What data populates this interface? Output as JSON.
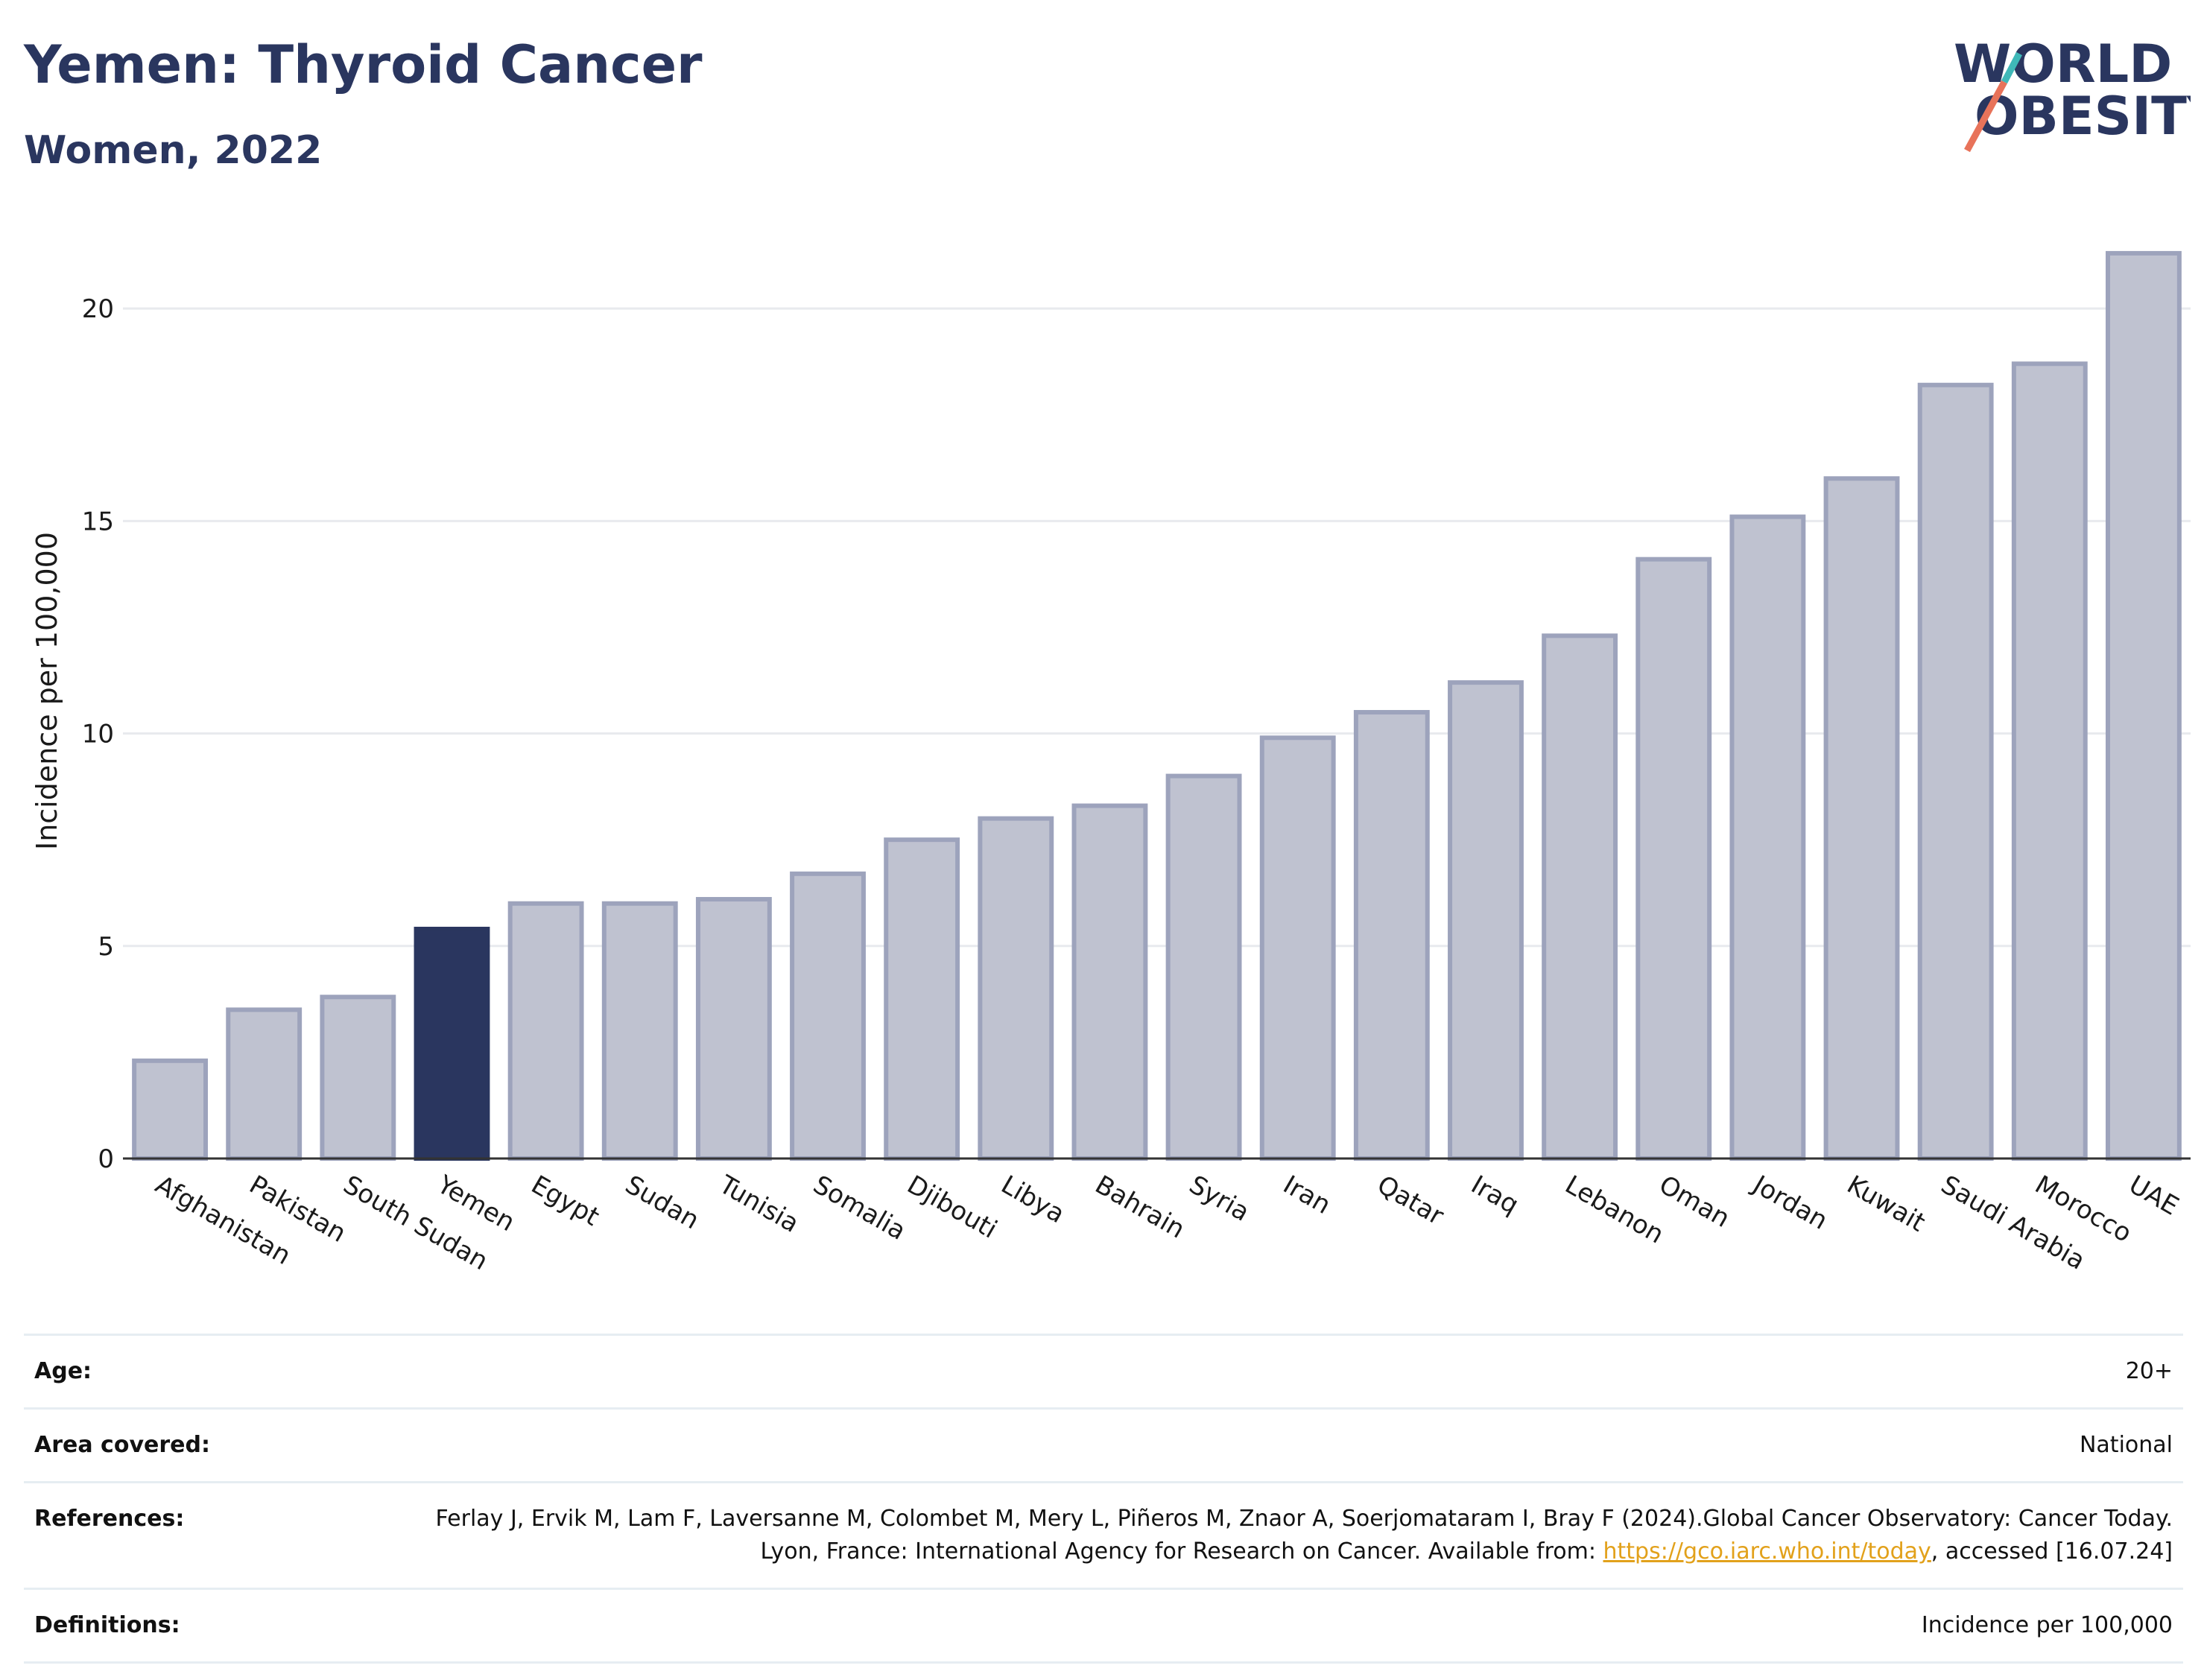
{
  "header": {
    "title": "Yemen: Thyroid Cancer",
    "subtitle": "Women, 2022"
  },
  "logo": {
    "line1": "WORLD",
    "line2": "OBESITY",
    "text_color": "#2a365f",
    "slash_colors": [
      "#e8735a",
      "#3fb8b8"
    ]
  },
  "chart_data": {
    "type": "bar",
    "title": "Yemen: Thyroid Cancer",
    "subtitle": "Women, 2022",
    "xlabel": "",
    "ylabel": "Incidence per 100,000",
    "categories": [
      "Afghanistan",
      "Pakistan",
      "South Sudan",
      "Yemen",
      "Egypt",
      "Sudan",
      "Tunisia",
      "Somalia",
      "Djibouti",
      "Libya",
      "Bahrain",
      "Syria",
      "Iran",
      "Qatar",
      "Iraq",
      "Lebanon",
      "Oman",
      "Jordan",
      "Kuwait",
      "Saudi Arabia",
      "Morocco",
      "UAE"
    ],
    "values": [
      2.3,
      3.5,
      3.8,
      5.4,
      6.0,
      6.0,
      6.1,
      6.7,
      7.5,
      8.0,
      8.3,
      9.0,
      9.9,
      10.5,
      11.2,
      12.3,
      14.1,
      15.1,
      16.0,
      18.2,
      18.7,
      21.3
    ],
    "highlight": "Yemen",
    "ylim": [
      0,
      22
    ],
    "yticks": [
      0,
      5,
      10,
      15,
      20
    ],
    "grid": true,
    "legend": "none",
    "colors": {
      "bar": "#bfc2d0",
      "bar_outline": "#9da3bc",
      "highlight": "#2a365f",
      "grid": "#e8eaee",
      "axis": "#333333"
    }
  },
  "info": [
    {
      "key": "Age:",
      "value": "20+"
    },
    {
      "key": "Area covered:",
      "value": "National"
    },
    {
      "key": "References:",
      "value_before": "Ferlay J, Ervik M, Lam F, Laversanne M, Colombet M, Mery L, Piñeros M, Znaor A, Soerjomataram I, Bray F (2024).Global Cancer Observatory: Cancer Today. Lyon, France: International Agency for Research on Cancer. Available from: ",
      "link": "https://gco.iarc.who.int/today",
      "value_after": ", accessed [16.07.24]"
    },
    {
      "key": "Definitions:",
      "value": "Incidence per 100,000"
    }
  ]
}
